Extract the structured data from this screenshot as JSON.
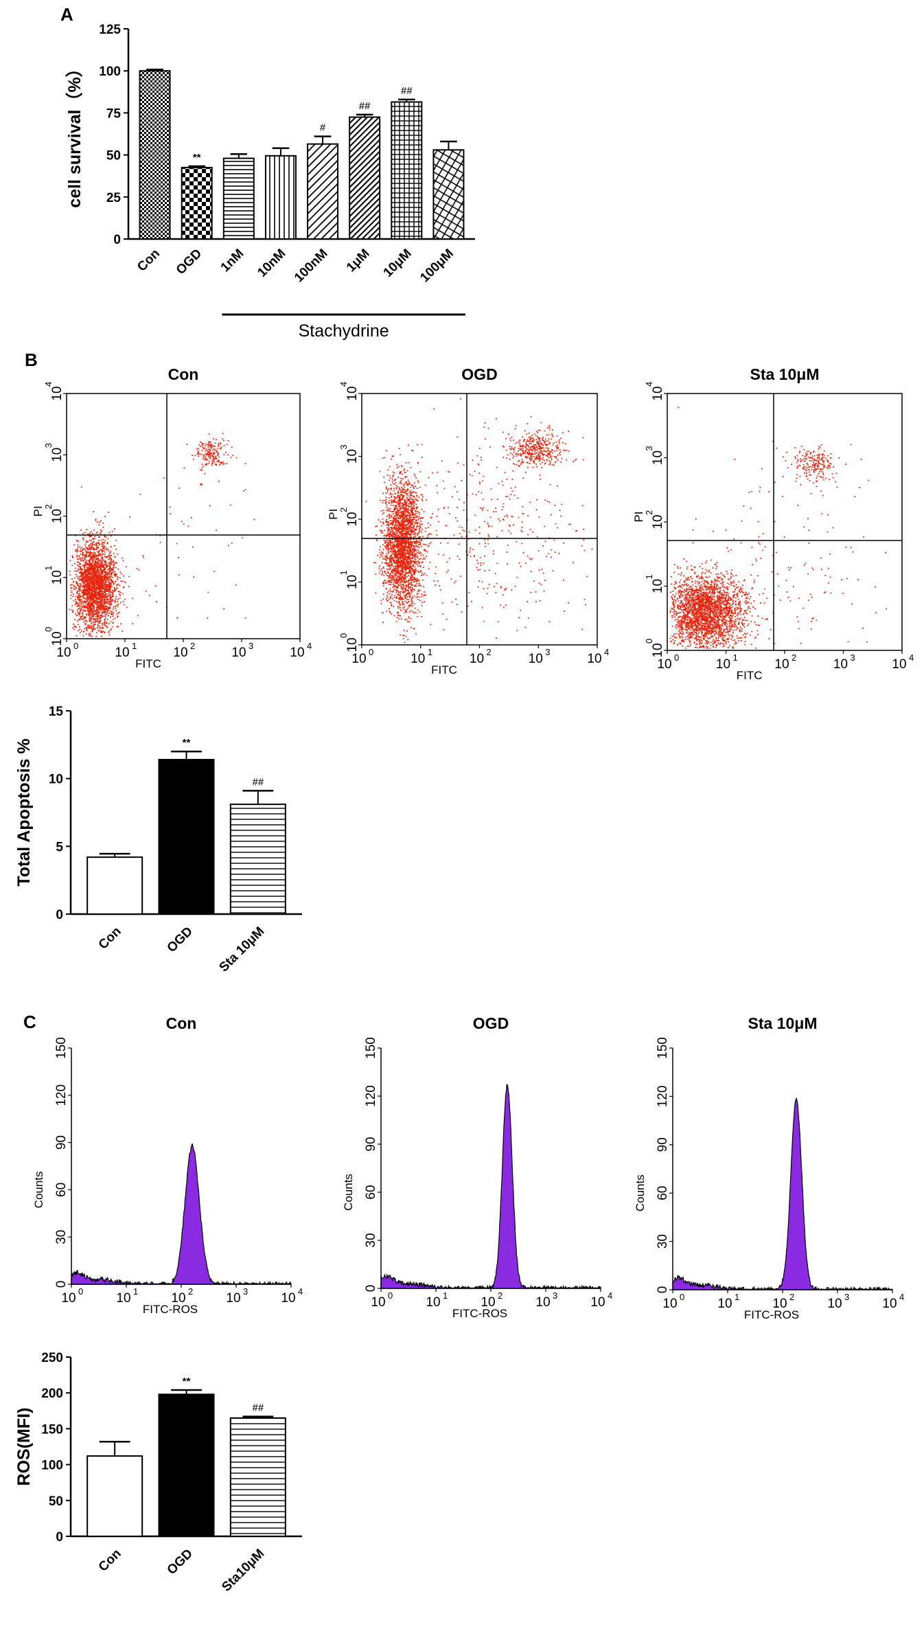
{
  "panels": {
    "a": "A",
    "b": "B",
    "c": "C"
  },
  "chart_data": [
    {
      "id": "A",
      "type": "bar",
      "ylabel": "cell survival（%）",
      "ylim": [
        0,
        125
      ],
      "yticks": [
        0,
        25,
        50,
        75,
        100,
        125
      ],
      "categories": [
        "Con",
        "OGD",
        "1nM",
        "10nM",
        "100nM",
        "1μM",
        "10μM",
        "100μM"
      ],
      "values": [
        100,
        42.5,
        48,
        49.5,
        56.5,
        72.5,
        81.5,
        53
      ],
      "errors": [
        0.8,
        0.8,
        2.5,
        4.5,
        4.5,
        1.5,
        1.5,
        5
      ],
      "annotations": [
        "",
        "**",
        "",
        "",
        "#",
        "##",
        "##",
        ""
      ],
      "group_label": "Stachydrine"
    },
    {
      "id": "B-flow",
      "type": "scatter",
      "plots": [
        {
          "title": "Con",
          "xlabel": "FITC",
          "ylabel": "PI"
        },
        {
          "title": "OGD",
          "xlabel": "FITC",
          "ylabel": "PI"
        },
        {
          "title": "Sta 10μM",
          "xlabel": "FITC",
          "ylabel": "PI"
        }
      ],
      "log_ticks": [
        "0",
        "1",
        "2",
        "3",
        "4"
      ],
      "axis_range_log10": [
        0,
        4
      ]
    },
    {
      "id": "B-bar",
      "type": "bar",
      "ylabel": "Total Apoptosis %",
      "ylim": [
        0,
        15
      ],
      "yticks": [
        0,
        5,
        10,
        15
      ],
      "categories": [
        "Con",
        "OGD",
        "Sta 10μM"
      ],
      "values": [
        4.2,
        11.4,
        8.1
      ],
      "errors": [
        0.25,
        0.6,
        1.0
      ],
      "annotations": [
        "",
        "**",
        "##"
      ]
    },
    {
      "id": "C-hist",
      "type": "area",
      "plots": [
        {
          "title": "Con",
          "xlabel": "FITC-ROS",
          "ylabel": "Counts",
          "peak_log10": 2.2,
          "peak_count": 88
        },
        {
          "title": "OGD",
          "xlabel": "FITC-ROS",
          "ylabel": "Counts",
          "peak_log10": 2.3,
          "peak_count": 127
        },
        {
          "title": "Sta 10μM",
          "xlabel": "FITC-ROS",
          "ylabel": "Counts",
          "peak_log10": 2.25,
          "peak_count": 118
        }
      ],
      "ylim": [
        0,
        150
      ],
      "yticks": [
        0,
        30,
        60,
        90,
        120,
        150
      ],
      "log_ticks": [
        "0",
        "1",
        "2",
        "3",
        "4"
      ]
    },
    {
      "id": "C-bar",
      "type": "bar",
      "ylabel": "ROS(MFI)",
      "ylim": [
        0,
        250
      ],
      "yticks": [
        0,
        50,
        100,
        150,
        200,
        250
      ],
      "categories": [
        "Con",
        "OGD",
        "Sta10μM"
      ],
      "values": [
        112,
        198,
        165
      ],
      "errors": [
        20,
        6,
        2
      ],
      "annotations": [
        "",
        "**",
        "##"
      ]
    }
  ],
  "colors": {
    "dots": "#e8250c",
    "hist": "#8a2be2",
    "axis": "#000000"
  }
}
